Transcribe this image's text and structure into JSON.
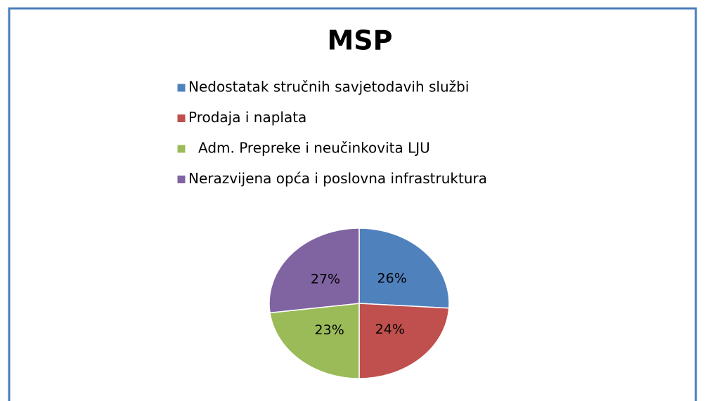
{
  "chart_data": {
    "type": "pie",
    "title": "MSP",
    "categories": [
      "Nedostatak stručnih savjetodavih službi",
      "Prodaja i naplata",
      "Adm. Prepreke i neučinkovita LJU",
      "Nerazvijena opća i poslovna infrastruktura"
    ],
    "values": [
      26,
      24,
      23,
      27
    ],
    "value_labels": [
      "26%",
      "24%",
      "23%",
      "27%"
    ],
    "colors": [
      "#4f81bd",
      "#c0504d",
      "#9bbb59",
      "#8064a2"
    ],
    "legend": "top"
  }
}
